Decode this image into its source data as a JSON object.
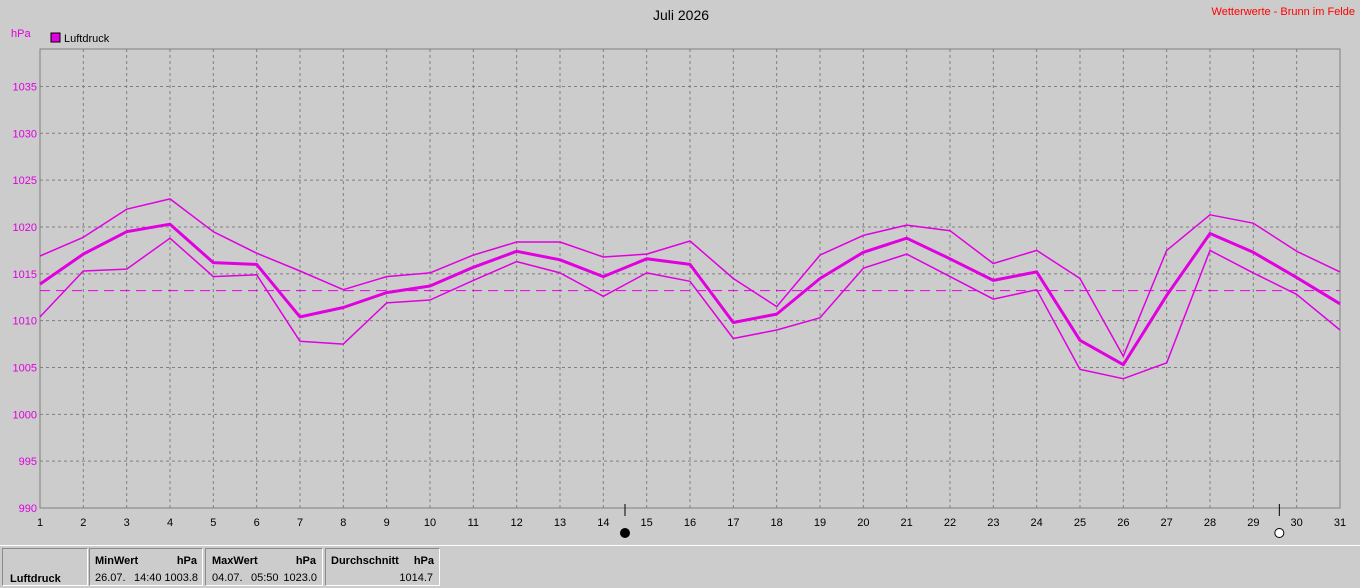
{
  "header": {
    "title": "Juli 2026",
    "credit": "Wetterwerte - Brunn im Felde",
    "unit": "hPa"
  },
  "legend": {
    "label": "Luftdruck",
    "color": "#e000e0"
  },
  "chart_data": {
    "type": "line",
    "title": "Juli 2026",
    "ylabel": "hPa",
    "ylim": [
      990,
      1039
    ],
    "yticks": [
      990,
      995,
      1000,
      1005,
      1010,
      1015,
      1020,
      1025,
      1030,
      1035
    ],
    "x": [
      1,
      2,
      3,
      4,
      5,
      6,
      7,
      8,
      9,
      10,
      11,
      12,
      13,
      14,
      15,
      16,
      17,
      18,
      19,
      20,
      21,
      22,
      23,
      24,
      25,
      26,
      27,
      28,
      29,
      30,
      31
    ],
    "grid": true,
    "legend_position": "top-left",
    "reference_line": {
      "value": 1013.2,
      "style": "dashed"
    },
    "series": [
      {
        "name": "Luftdruck",
        "role": "max",
        "values": [
          1016.9,
          1018.9,
          1021.9,
          1023.0,
          1019.5,
          1017.2,
          1015.3,
          1013.3,
          1014.7,
          1015.1,
          1017.0,
          1018.4,
          1018.4,
          1016.8,
          1017.1,
          1018.5,
          1014.5,
          1011.5,
          1017.0,
          1019.1,
          1020.2,
          1019.6,
          1016.1,
          1017.5,
          1014.5,
          1006.2,
          1017.5,
          1021.3,
          1020.4,
          1017.4,
          1015.2
        ]
      },
      {
        "name": "Luftdruck",
        "role": "avg",
        "values": [
          1013.9,
          1017.1,
          1019.5,
          1020.3,
          1016.2,
          1016.0,
          1010.4,
          1011.4,
          1013.0,
          1013.7,
          1015.7,
          1017.4,
          1016.5,
          1014.7,
          1016.6,
          1016.0,
          1009.8,
          1010.7,
          1014.5,
          1017.3,
          1018.8,
          1016.6,
          1014.3,
          1015.2,
          1007.9,
          1005.3,
          1012.7,
          1019.3,
          1017.3,
          1014.6,
          1011.8
        ]
      },
      {
        "name": "Luftdruck",
        "role": "min",
        "values": [
          1010.4,
          1015.3,
          1015.5,
          1018.8,
          1014.7,
          1014.9,
          1007.8,
          1007.5,
          1011.9,
          1012.2,
          1014.3,
          1016.3,
          1015.1,
          1012.6,
          1015.1,
          1014.2,
          1008.1,
          1009.0,
          1010.3,
          1015.6,
          1017.1,
          1014.7,
          1012.3,
          1013.3,
          1004.8,
          1003.8,
          1005.5,
          1017.5,
          1015.1,
          1012.8,
          1009.0
        ]
      }
    ],
    "moon_phases": [
      {
        "day": 14.5,
        "phase": "new-moon"
      },
      {
        "day": 29.6,
        "phase": "full-moon"
      }
    ]
  },
  "stats": {
    "series_name": "Luftdruck",
    "min": {
      "header": "MinWert",
      "unit": "hPa",
      "date": "26.07.",
      "time": "14:40",
      "value": "1003.8"
    },
    "max": {
      "header": "MaxWert",
      "unit": "hPa",
      "date": "04.07.",
      "time": "05:50",
      "value": "1023.0"
    },
    "avg": {
      "header": "Durchschnitt",
      "unit": "hPa",
      "value": "1014.7"
    }
  }
}
